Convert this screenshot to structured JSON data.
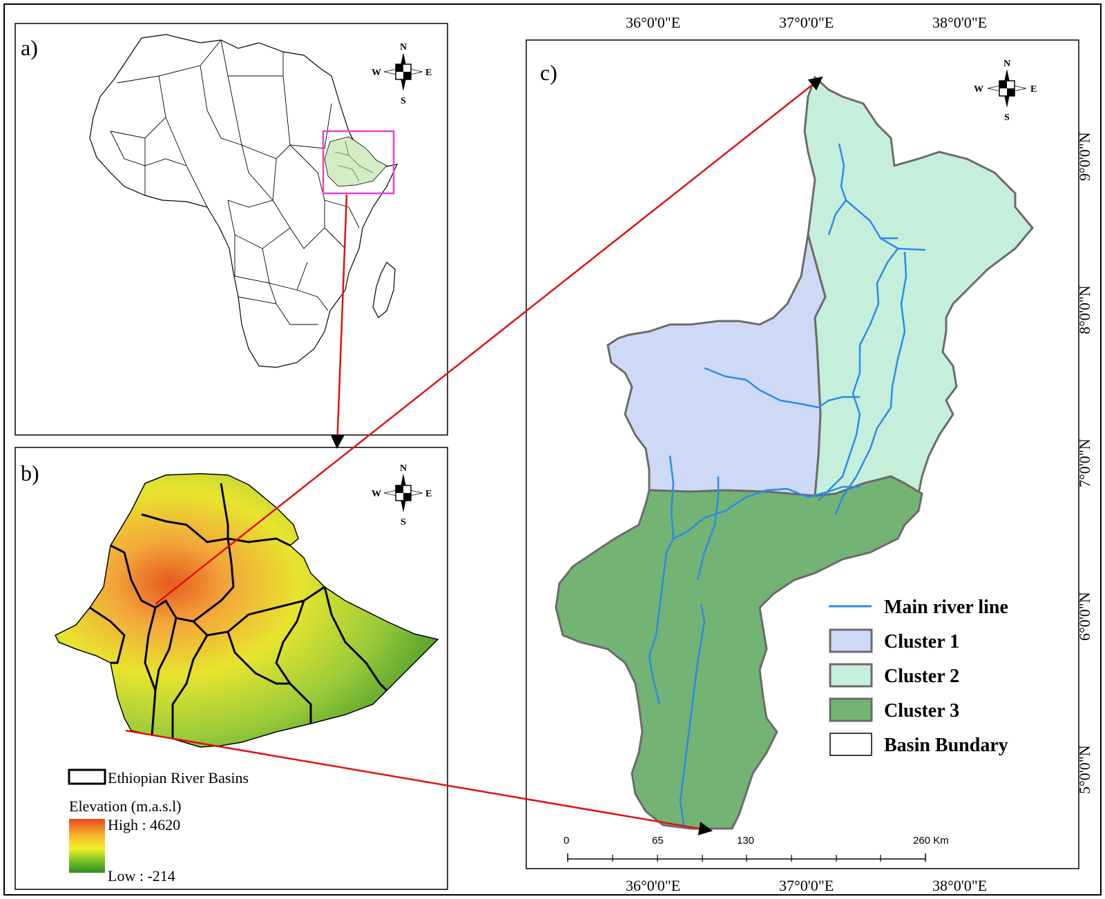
{
  "panels": {
    "a": {
      "label": "a)"
    },
    "b": {
      "label": "b)"
    },
    "c": {
      "label": "c)"
    }
  },
  "compass": {
    "n": "N",
    "s": "S",
    "e": "E",
    "w": "W"
  },
  "grid": {
    "top_lon": [
      "36°0'0\"E",
      "37°0'0\"E",
      "38°0'0\"E"
    ],
    "bottom_lon": [
      "36°0'0\"E",
      "37°0'0\"E",
      "38°0'0\"E"
    ],
    "right_lat": [
      "9°0'0\"N",
      "8°0'0\"N",
      "7°0'0\"N",
      "6°0'0\"N",
      "5°0'0\"N"
    ]
  },
  "legend_c": {
    "river": "Main river line",
    "cluster1": "Cluster 1",
    "cluster2": "Cluster 2",
    "cluster3": "Cluster 3",
    "boundary": "Basin Bundary"
  },
  "legend_b": {
    "basins": "Ethiopian River Basins",
    "elevation_title": "Elevation (m.a.s.l)",
    "high": "High : 4620",
    "low": "Low : -214"
  },
  "scale_bar": {
    "labels": [
      "0",
      "65",
      "130",
      "260 Km"
    ]
  },
  "colors": {
    "cluster1": "#cdd9f5",
    "cluster2": "#c5eedb",
    "cluster3": "#73b374",
    "river": "#2b8be8",
    "boundary": "#6b6b6b",
    "arrow": "#e01010",
    "inset_box": "#e83fd0"
  }
}
